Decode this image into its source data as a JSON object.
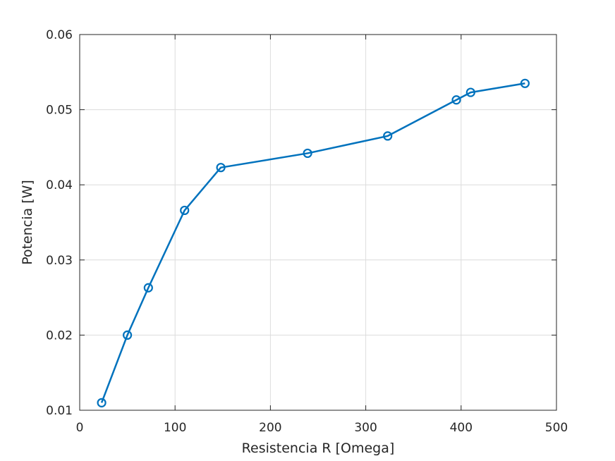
{
  "chart_data": {
    "type": "line",
    "xlabel": "Resistencia R [Omega]",
    "ylabel": "Potencia [W]",
    "xlim": [
      0,
      500
    ],
    "ylim": [
      0.01,
      0.06
    ],
    "xticks": [
      0,
      100,
      200,
      300,
      400,
      500
    ],
    "yticks": [
      0.01,
      0.02,
      0.03,
      0.04,
      0.05,
      0.06
    ],
    "xtick_labels": [
      "0",
      "100",
      "200",
      "300",
      "400",
      "500"
    ],
    "ytick_labels": [
      "0.01",
      "0.02",
      "0.03",
      "0.04",
      "0.05",
      "0.06"
    ],
    "grid": true,
    "marker": "circle",
    "color": "#0072BD",
    "series": [
      {
        "x": [
          23,
          50,
          72,
          110,
          148,
          239,
          323,
          395,
          410,
          467
        ],
        "y": [
          0.011,
          0.02,
          0.0263,
          0.0366,
          0.0423,
          0.0442,
          0.0465,
          0.0513,
          0.0523,
          0.0535
        ]
      }
    ]
  }
}
